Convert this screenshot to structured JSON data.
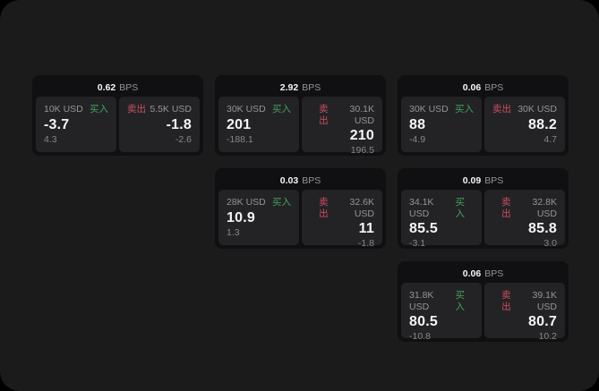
{
  "colors": {
    "container": "#1b1b1c",
    "card": "#101012",
    "panel": "#232325",
    "value": "#f5f5f6",
    "muted": "#94949a",
    "sub": "#87878c",
    "buy": "#41a35c",
    "sell": "#cf4d62"
  },
  "labels": {
    "buy": "买入",
    "sell": "卖出",
    "bps": "BPS"
  },
  "cards": [
    {
      "row": 1,
      "col": 1,
      "bps": "0.62",
      "buy": {
        "amount": "10K USD",
        "value": "-3.7",
        "sub": "4.3"
      },
      "sell": {
        "amount": "5.5K USD",
        "value": "-1.8",
        "sub": "-2.6"
      }
    },
    {
      "row": 1,
      "col": 2,
      "bps": "2.92",
      "buy": {
        "amount": "30K USD",
        "value": "201",
        "sub": "-188.1"
      },
      "sell": {
        "amount": "30.1K USD",
        "value": "210",
        "sub": "196.5"
      }
    },
    {
      "row": 1,
      "col": 3,
      "bps": "0.06",
      "buy": {
        "amount": "30K USD",
        "value": "88",
        "sub": "-4.9"
      },
      "sell": {
        "amount": "30K USD",
        "value": "88.2",
        "sub": "4.7"
      }
    },
    {
      "row": 2,
      "col": 2,
      "bps": "0.03",
      "buy": {
        "amount": "28K USD",
        "value": "10.9",
        "sub": "1.3"
      },
      "sell": {
        "amount": "32.6K USD",
        "value": "11",
        "sub": "-1.8"
      }
    },
    {
      "row": 2,
      "col": 3,
      "bps": "0.09",
      "buy": {
        "amount": "34.1K USD",
        "value": "85.5",
        "sub": "-3.1"
      },
      "sell": {
        "amount": "32.8K USD",
        "value": "85.8",
        "sub": "3.0"
      }
    },
    {
      "row": 3,
      "col": 3,
      "bps": "0.06",
      "buy": {
        "amount": "31.8K USD",
        "value": "80.5",
        "sub": "-10.8"
      },
      "sell": {
        "amount": "39.1K USD",
        "value": "80.7",
        "sub": "10.2"
      }
    }
  ]
}
